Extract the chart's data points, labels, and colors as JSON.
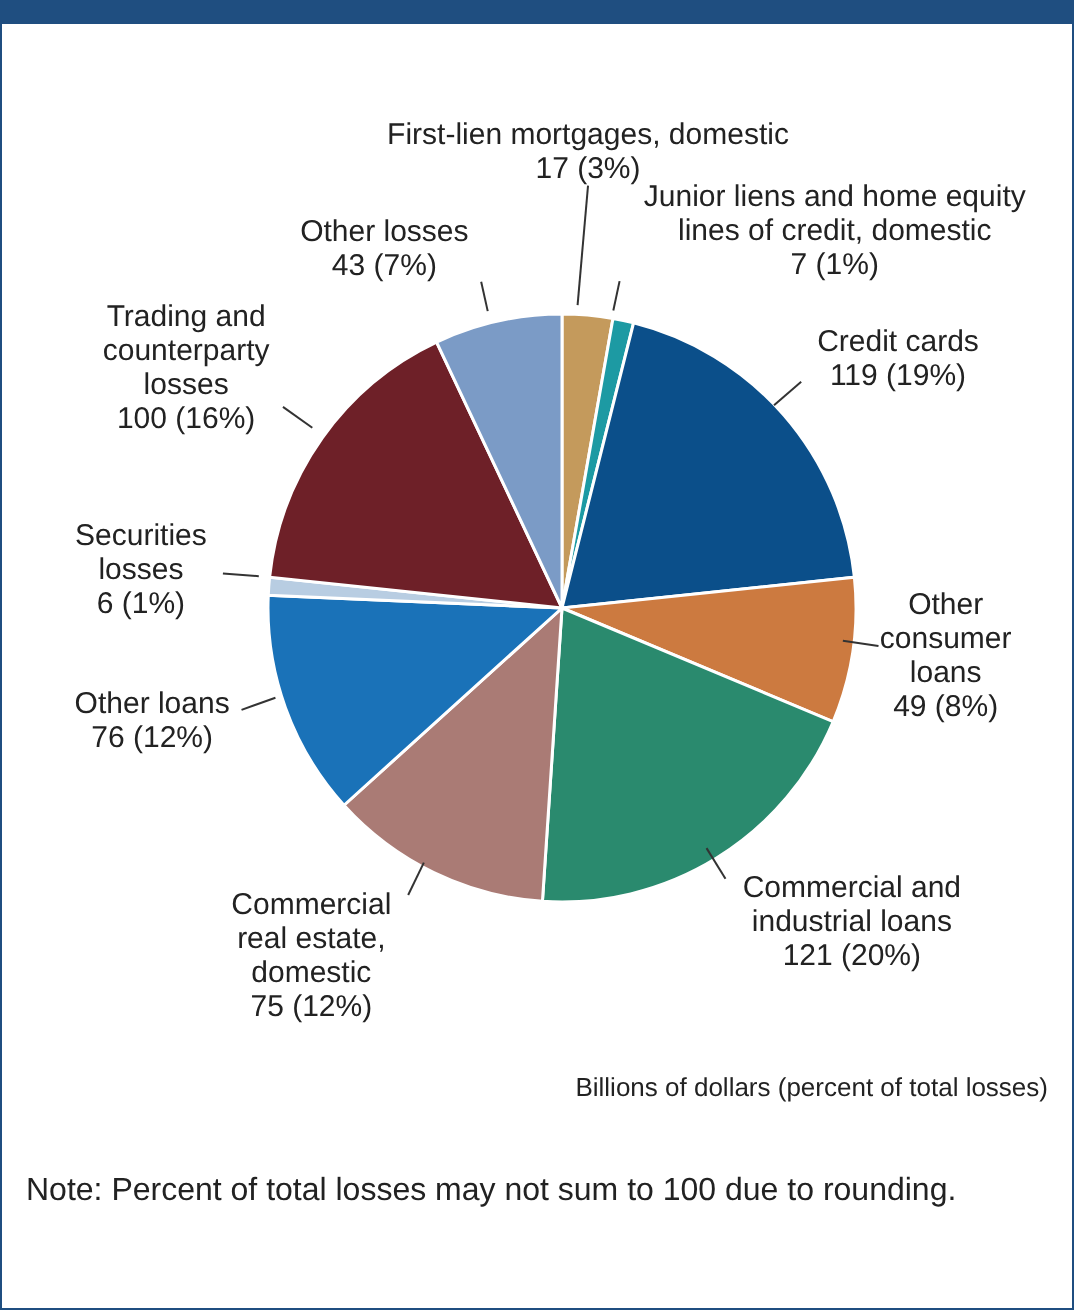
{
  "chart_data": {
    "type": "pie",
    "categories": [
      "First-lien mortgages, domestic",
      "Junior liens and home equity\nlines of credit, domestic",
      "Credit cards",
      "Other\nconsumer\nloans",
      "Commercial and\nindustrial loans",
      "Commercial\nreal estate,\ndomestic",
      "Other loans",
      "Securities\nlosses",
      "Trading and\ncounterparty\nlosses",
      "Other losses"
    ],
    "values": [
      17,
      7,
      119,
      49,
      121,
      75,
      76,
      6,
      100,
      43
    ],
    "value_labels": [
      "17 (3%)",
      "7 (1%)",
      "119 (19%)",
      "49 (8%)",
      "121 (20%)",
      "75 (12%)",
      "76 (12%)",
      "6 (1%)",
      "100 (16%)",
      "43 (7%)"
    ],
    "colors": [
      "#c49a5c",
      "#1d9aa3",
      "#0b4f8a",
      "#cc7a40",
      "#2a8a6e",
      "#aa7b75",
      "#1a72b8",
      "#b8cde2",
      "#6e2028",
      "#7b9bc6"
    ],
    "annotations": [
      "Billions of dollars (percent of total losses)",
      "Note: Percent of total losses may not sum to 100 due to rounding."
    ]
  }
}
